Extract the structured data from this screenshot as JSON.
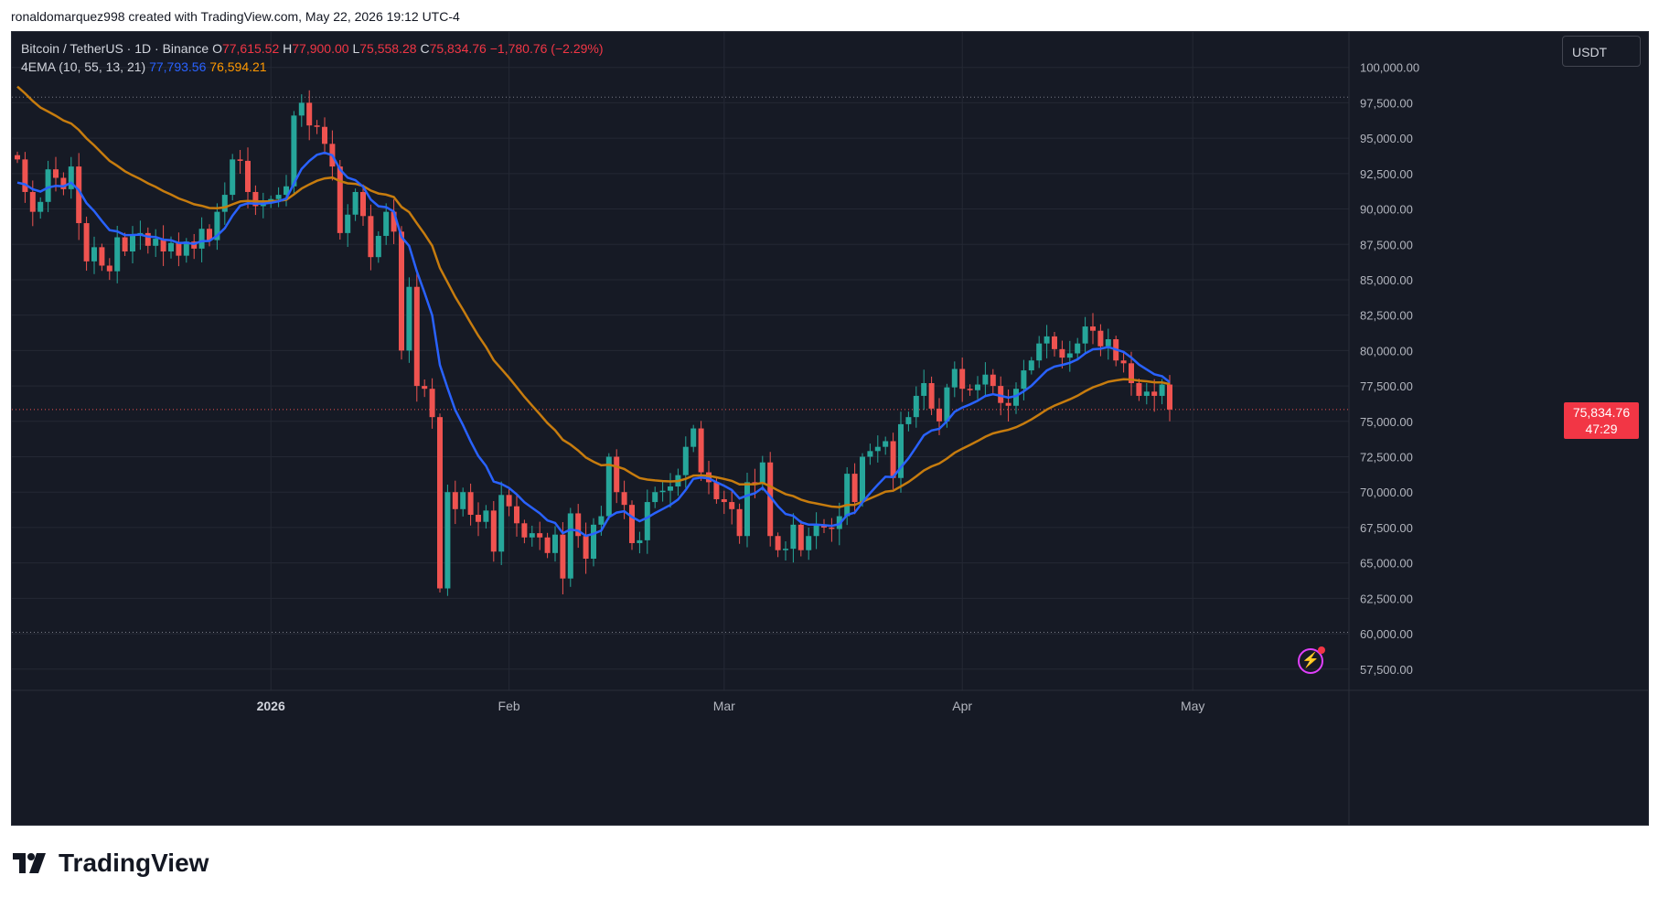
{
  "header": {
    "attribution": "ronaldomarquez998 created with TradingView.com, May 22, 2026 19:12 UTC-4"
  },
  "legend": {
    "symbol": "Bitcoin / TetherUS · 1D · Binance",
    "open_label": "O",
    "open": "77,615.52",
    "high_label": "H",
    "high": "77,900.00",
    "low_label": "L",
    "low": "75,558.28",
    "close_label": "C",
    "close": "75,834.76",
    "change": "−1,780.76 (−2.29%)",
    "indicator_name": "4EMA (10, 55, 13, 21)",
    "ema_fast_value": "77,793.56",
    "ema_slow_value": "76,594.21"
  },
  "currency_button": "USDT",
  "current_price_tag": {
    "price": "75,834.76",
    "countdown": "47:29"
  },
  "brand": {
    "name": "TradingView"
  },
  "colors": {
    "background": "#161a25",
    "up": "#26a69a",
    "down": "#ef5350",
    "ema_fast": "#2962ff",
    "ema_slow": "#c77c0e",
    "grid": "#242834",
    "axis_text": "#b2b5be"
  },
  "icons": {
    "flash": "lightning-bolt-icon"
  },
  "chart_data": {
    "type": "candlestick",
    "y_axis_label": "",
    "ylim": [
      56000,
      102500
    ],
    "y_ticks": [
      "100,000.00",
      "97,500.00",
      "95,000.00",
      "92,500.00",
      "90,000.00",
      "87,500.00",
      "85,000.00",
      "82,500.00",
      "80,000.00",
      "77,500.00",
      "75,000.00",
      "72,500.00",
      "70,000.00",
      "67,500.00",
      "65,000.00",
      "62,500.00",
      "60,000.00",
      "57,500.00"
    ],
    "x_ticks": [
      {
        "label": "2026",
        "bar": 33
      },
      {
        "label": "Feb",
        "bar": 64
      },
      {
        "label": "Mar",
        "bar": 92
      },
      {
        "label": "Apr",
        "bar": 123
      },
      {
        "label": "May",
        "bar": 153
      }
    ],
    "reference_lines": [
      97900,
      60100
    ],
    "close_series_approx": [
      93500,
      91200,
      89800,
      90500,
      92800,
      92200,
      91400,
      93000,
      89000,
      86300,
      87300,
      86000,
      85600,
      88000,
      87000,
      88200,
      88300,
      87400,
      87900,
      87000,
      87600,
      86700,
      87700,
      87200,
      88600,
      87800,
      89800,
      91000,
      93500,
      93400,
      91200,
      90200,
      90400,
      90700,
      91000,
      91600,
      96600,
      97500,
      95900,
      95800,
      94600,
      93000,
      88300,
      89600,
      91200,
      89500,
      86600,
      88100,
      89800,
      88400,
      80000,
      84500,
      77500,
      77300,
      75300,
      63200,
      70000,
      68800,
      70000,
      68400,
      67900,
      68700,
      65800,
      69800,
      69000,
      67800,
      66800,
      67100,
      66800,
      65700,
      67000,
      63900,
      68500,
      66900,
      65300,
      67700,
      68300,
      72500,
      70000,
      69100,
      66400,
      66600,
      69300,
      70000,
      70100,
      70400,
      71200,
      73200,
      74500,
      71400,
      70700,
      69500,
      69300,
      68800,
      66900,
      70700,
      70600,
      72100,
      66900,
      65900,
      66000,
      67700,
      65900,
      66900,
      67700,
      67500,
      67400,
      68300,
      71300,
      69300,
      72500,
      72900,
      73200,
      73600,
      71000,
      74800,
      75300,
      76800,
      77700,
      75900,
      75000,
      77400,
      78700,
      77300,
      77200,
      77600,
      78300,
      77500,
      76300,
      76100,
      77300,
      78600,
      79300,
      80500,
      81000,
      80100,
      79500,
      79800,
      80500,
      81700,
      81400,
      80300,
      80800,
      79300,
      79100,
      77700,
      76800,
      77100,
      76800,
      77600,
      75834.76
    ],
    "ema_fast_last": 77793.56,
    "ema_slow_last": 76594.21,
    "last_close": 75834.76
  }
}
